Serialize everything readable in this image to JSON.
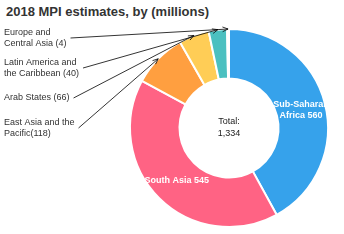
{
  "chart_data": {
    "type": "doughnut",
    "title": "2018 MPI estimates, by (millions)",
    "categories": [
      "Sub-Saharan\nAfrica 560",
      "South Asia 545",
      "East Asia and the\nPacific(118)",
      "Arab States (66)",
      "Latin America and\nthe Caribbean (40)",
      "Europe and\nCentral Asia (4)"
    ],
    "values": [
      560,
      545,
      118,
      66,
      40,
      4
    ],
    "annotations": [
      "Total:\n1,334"
    ]
  }
}
